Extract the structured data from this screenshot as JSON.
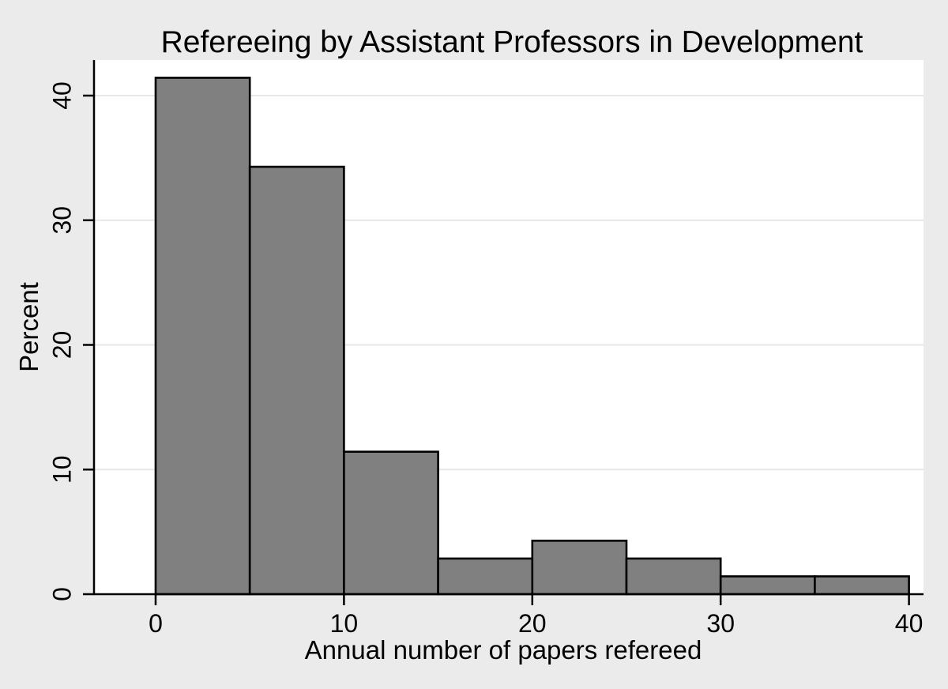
{
  "figure": {
    "background_color": "#ebebeb",
    "plot_background_color": "#ffffff"
  },
  "chart_data": {
    "type": "bar",
    "subtype": "histogram",
    "title": "Refereeing by Assistant Professors in Development",
    "xlabel": "Annual number of papers refereed",
    "ylabel": "Percent",
    "bin_start": 0,
    "bin_width": 5,
    "bin_edges": [
      0,
      5,
      10,
      15,
      20,
      25,
      30,
      35,
      40
    ],
    "categories": [
      "0-5",
      "5-10",
      "10-15",
      "15-20",
      "20-25",
      "25-30",
      "30-35",
      "35-40"
    ],
    "values": [
      41.43,
      34.29,
      11.43,
      2.86,
      4.29,
      2.86,
      1.43,
      1.43
    ],
    "x_ticks": [
      "0",
      "10",
      "20",
      "30",
      "40"
    ],
    "y_ticks": [
      "0",
      "10",
      "20",
      "30",
      "40"
    ],
    "xlim": [
      -3.3,
      40.8
    ],
    "ylim": [
      0,
      42.9
    ],
    "grid": "horizontal",
    "legend_position": "none",
    "gridline_color": "#e7e7e7",
    "bar_fill_color": "#808080",
    "bar_outline_color": "#000000",
    "axis_color": "#000000"
  }
}
